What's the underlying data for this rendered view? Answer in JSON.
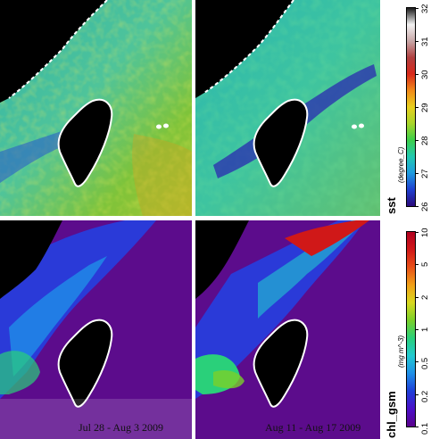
{
  "panels": [
    {
      "id": "sst-jul",
      "variable": "sst",
      "period_label": ""
    },
    {
      "id": "sst-aug",
      "variable": "sst",
      "period_label": ""
    },
    {
      "id": "chl-jul",
      "variable": "chl_gsm",
      "period_label": "Jul 28 - Aug 3 2009"
    },
    {
      "id": "chl-aug",
      "variable": "chl_gsm",
      "period_label": "Aug 11 - Aug 17 2009"
    }
  ],
  "colorbars": {
    "sst": {
      "title": "sst",
      "unit": "(degree_C)",
      "range": [
        26,
        32
      ],
      "ticks": [
        "26",
        "27",
        "28",
        "29",
        "30",
        "31",
        "32"
      ],
      "scale": "linear",
      "colors": [
        "#2a0a7a",
        "#1f3fd0",
        "#1f9be0",
        "#22c9b0",
        "#3ccf4a",
        "#a8d52a",
        "#e8d020",
        "#f08a1a",
        "#d8281a",
        "#b04040",
        "#c8a8a8",
        "#f2f2f2",
        "#1a1a1a"
      ]
    },
    "chl": {
      "title": "chl_gsm",
      "unit": "(mg m^-3)",
      "range": [
        0.1,
        10
      ],
      "ticks": [
        "0.1",
        "0.2",
        "0.5",
        "1",
        "2",
        "5",
        "10"
      ],
      "scale": "log",
      "colors": [
        "#5a008a",
        "#4a10c8",
        "#1f3fd8",
        "#1f8fe8",
        "#22c9d0",
        "#2ad07a",
        "#7ad02a",
        "#d8d820",
        "#f0a018",
        "#e85018",
        "#d01818",
        "#b00020"
      ]
    }
  },
  "colors": {
    "land": "#000000",
    "coast": "#ffffff",
    "no_data": "#ffffff"
  }
}
